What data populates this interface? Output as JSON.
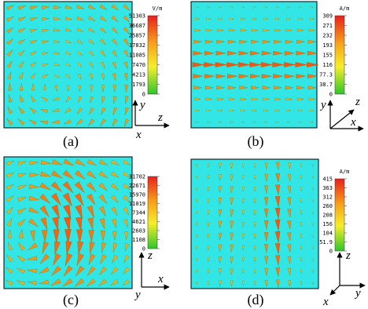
{
  "panels": [
    {
      "caption": "(a)",
      "unit": "V/m",
      "scale": [
        "51303",
        "36687",
        "25857",
        "17832",
        "11085",
        "7470",
        "4213",
        "1793",
        "0"
      ],
      "axes": [
        "y",
        "z",
        "x"
      ]
    },
    {
      "caption": "(b)",
      "unit": "A/m",
      "scale": [
        "309",
        "271",
        "232",
        "193",
        "155",
        "116",
        "77.3",
        "38.7",
        "0"
      ],
      "axes": [
        "y",
        "z",
        "x"
      ]
    },
    {
      "caption": "(c)",
      "scale": [
        "31702",
        "22671",
        "15970",
        "11019",
        "7344",
        "4621",
        "2603",
        "1108",
        "0"
      ],
      "axes": [
        "z",
        "y",
        "x"
      ]
    },
    {
      "caption": "(d)",
      "unit": "A/m",
      "scale": [
        "415",
        "363",
        "312",
        "260",
        "208",
        "156",
        "104",
        "51.9",
        "0"
      ],
      "axes": [
        "z",
        "y",
        "x"
      ]
    }
  ]
}
